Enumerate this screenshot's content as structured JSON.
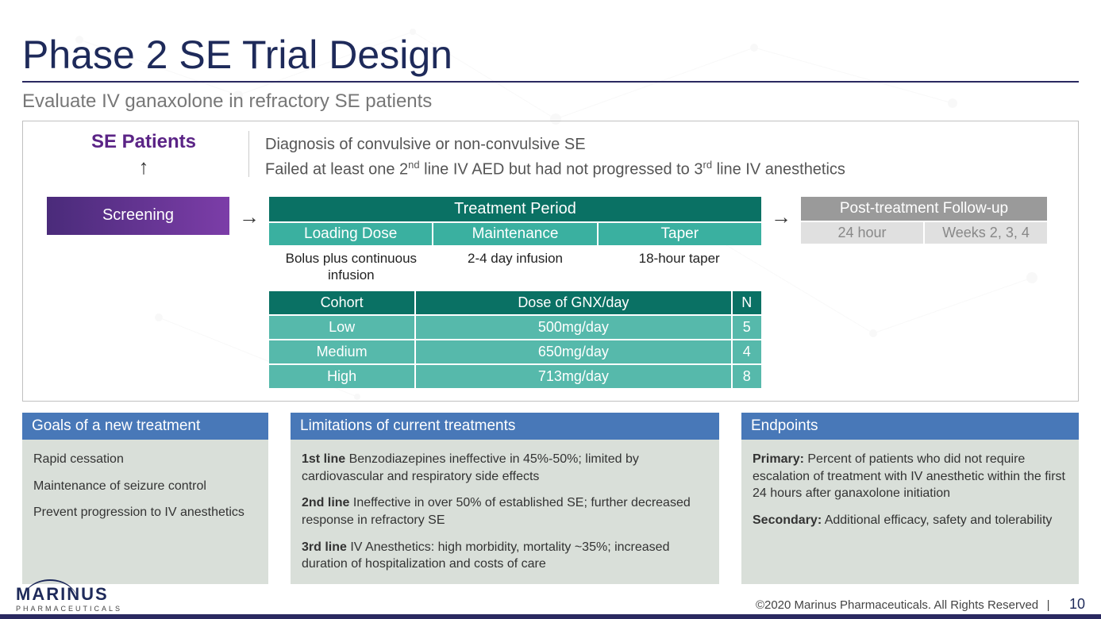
{
  "title": "Phase 2 SE Trial Design",
  "subtitle": "Evaluate IV ganaxolone in refractory SE patients",
  "se_patients_label": "SE Patients",
  "diagnosis_line1": "Diagnosis of convulsive or non-convulsive SE",
  "diagnosis_line2_html": "Failed at least one 2<sup>nd</sup> line IV AED but had not progressed to 3<sup>rd</sup> line IV anesthetics",
  "screening_label": "Screening",
  "treatment_header": "Treatment Period",
  "treatment_phases": [
    {
      "name": "Loading Dose",
      "desc": "Bolus plus continuous infusion"
    },
    {
      "name": "Maintenance",
      "desc": "2-4 day infusion"
    },
    {
      "name": "Taper",
      "desc": "18-hour taper"
    }
  ],
  "cohort_table": {
    "columns": [
      "Cohort",
      "Dose of GNX/day",
      "N"
    ],
    "rows": [
      [
        "Low",
        "500mg/day",
        "5"
      ],
      [
        "Medium",
        "650mg/day",
        "4"
      ],
      [
        "High",
        "713mg/day",
        "8"
      ]
    ]
  },
  "followup_header": "Post-treatment Follow-up",
  "followup_cols": [
    "24 hour",
    "Weeks 2, 3, 4"
  ],
  "goals": {
    "title": "Goals of a new treatment",
    "items": [
      "Rapid cessation",
      "Maintenance of seizure control",
      "Prevent progression to IV anesthetics"
    ]
  },
  "limitations": {
    "title": "Limitations of current treatments",
    "items": [
      {
        "bold": "1st line",
        "text": " Benzodiazepines ineffective in 45%-50%; limited by cardiovascular and respiratory side effects"
      },
      {
        "bold": "2nd line",
        "text": " Ineffective in over 50% of established SE; further decreased response in refractory SE"
      },
      {
        "bold": "3rd line",
        "text": " IV Anesthetics: high morbidity, mortality ~35%; increased duration of hospitalization and costs of care"
      }
    ]
  },
  "endpoints": {
    "title": "Endpoints",
    "items": [
      {
        "bold": "Primary:",
        "text": " Percent of patients who did not require escalation of treatment with IV anesthetic within the first 24 hours after ganaxolone initiation"
      },
      {
        "bold": "Secondary:",
        "text": " Additional efficacy, safety and tolerability"
      }
    ]
  },
  "logo_main": "MARINUS",
  "logo_sub": "PHARMACEUTICALS",
  "copyright": "©2020 Marinus Pharmaceuticals. All Rights Reserved",
  "page_number": "10",
  "colors": {
    "title_color": "#1e2a5a",
    "rule_color": "#2a2960",
    "se_patients_color": "#5b2486",
    "screening_grad_from": "#4a2b7a",
    "screening_grad_to": "#7c3da8",
    "treatment_header_bg": "#0a7164",
    "treatment_sub_bg": "#3ab0a0",
    "cohort_cell_bg": "#56b9ab",
    "followup_header_bg": "#9a9a9a",
    "followup_sub_bg": "#e0e0e0",
    "panel_head_bg": "#4878b8",
    "panel_body_bg": "#d9dfd9"
  }
}
